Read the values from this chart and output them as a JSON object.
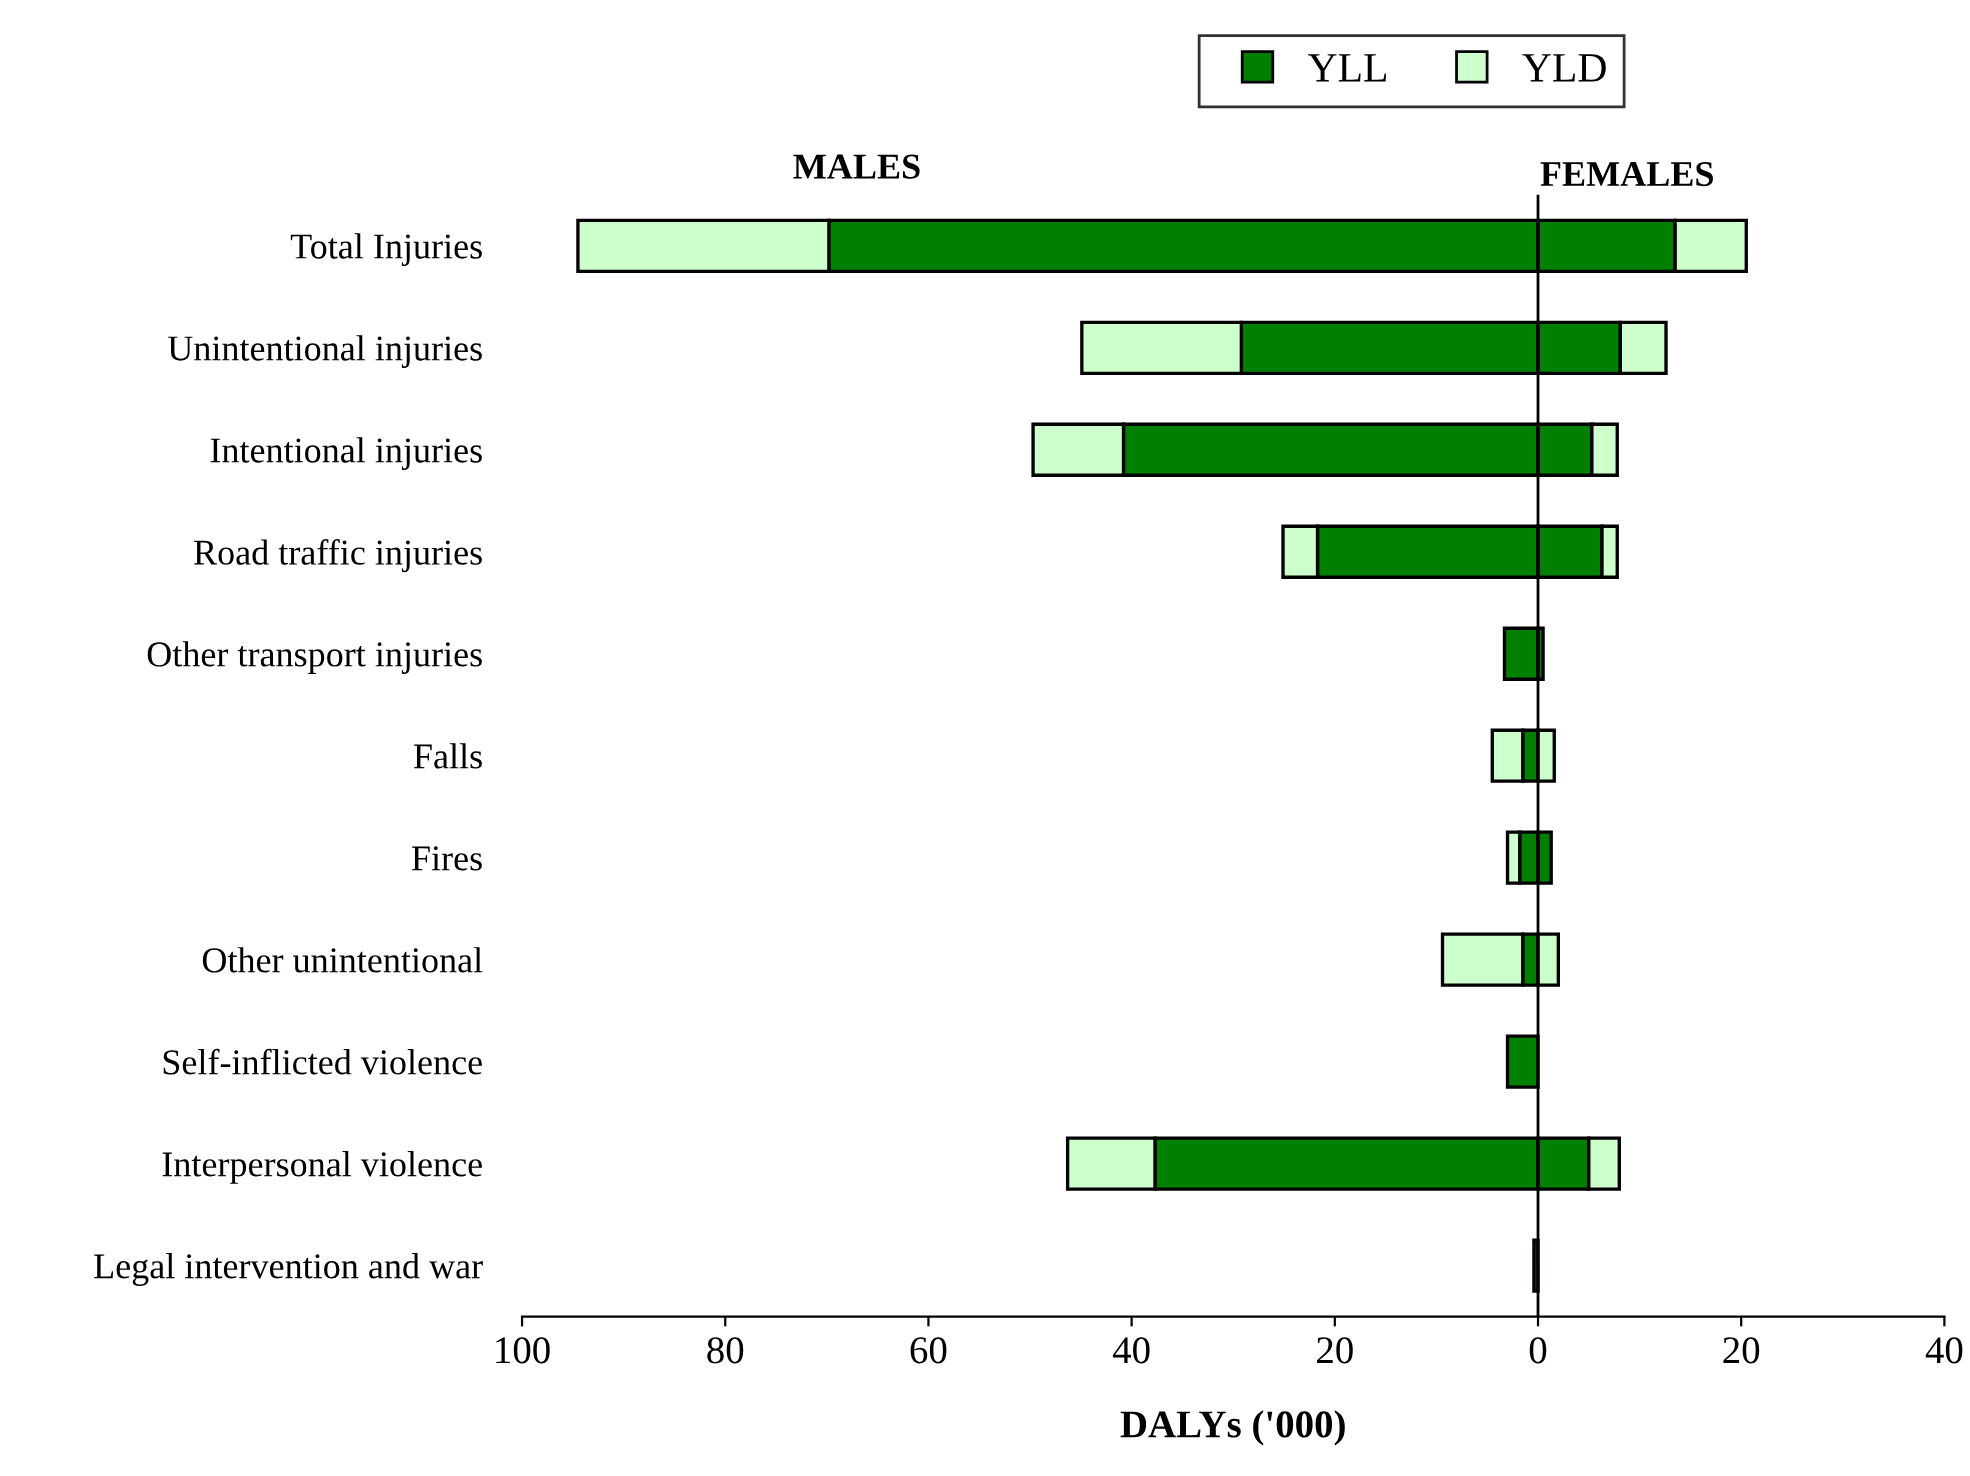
{
  "chart_data": {
    "type": "bar",
    "orientation": "horizontal",
    "stacked": true,
    "categories": [
      "Total Injuries",
      "Unintentional injuries",
      "Intentional injuries",
      "Road traffic injuries",
      "Other transport injuries",
      "Falls",
      "Fires",
      "Other unintentional",
      "Self-inflicted violence",
      "Interpersonal violence",
      "Legal intervention and war"
    ],
    "series": [
      {
        "name": "YLL",
        "color": "#008000",
        "values": [
          -69.8,
          -29.2,
          -40.8,
          -21.7,
          -3.3,
          -1.5,
          -1.8,
          -1.5,
          -3.0,
          -37.7,
          -0.4
        ]
      },
      {
        "color": "#008000",
        "values": [
          13.5,
          8.1,
          5.3,
          6.3,
          0.5,
          null,
          1.3,
          null,
          null,
          5.0,
          null
        ]
      },
      {
        "name": "YLD",
        "color": "#ccffcc",
        "values": [
          -24.7,
          -15.7,
          -8.9,
          -3.4,
          null,
          -3.0,
          -1.2,
          -7.9,
          null,
          -8.6,
          null
        ]
      },
      {
        "color": "#ccffcc",
        "values": [
          7.0,
          4.5,
          2.5,
          1.5,
          null,
          1.6,
          null,
          2.0,
          null,
          3.0,
          null
        ]
      }
    ],
    "xlim": [
      -100,
      40
    ],
    "xticks": [
      {
        "value": -100,
        "label": "100"
      },
      {
        "value": -80,
        "label": "80"
      },
      {
        "value": -60,
        "label": "60"
      },
      {
        "value": -40,
        "label": "40"
      },
      {
        "value": -20,
        "label": "20"
      },
      0,
      20,
      40
    ],
    "xlabel": "DALYs ('000)",
    "annotations": [
      "MALES",
      "FEMALES"
    ],
    "ref_lines": [
      {
        "axis": "x",
        "value": 0,
        "color": "#000000",
        "line_style": "solid"
      }
    ],
    "legend": "top right",
    "grid": false
  }
}
